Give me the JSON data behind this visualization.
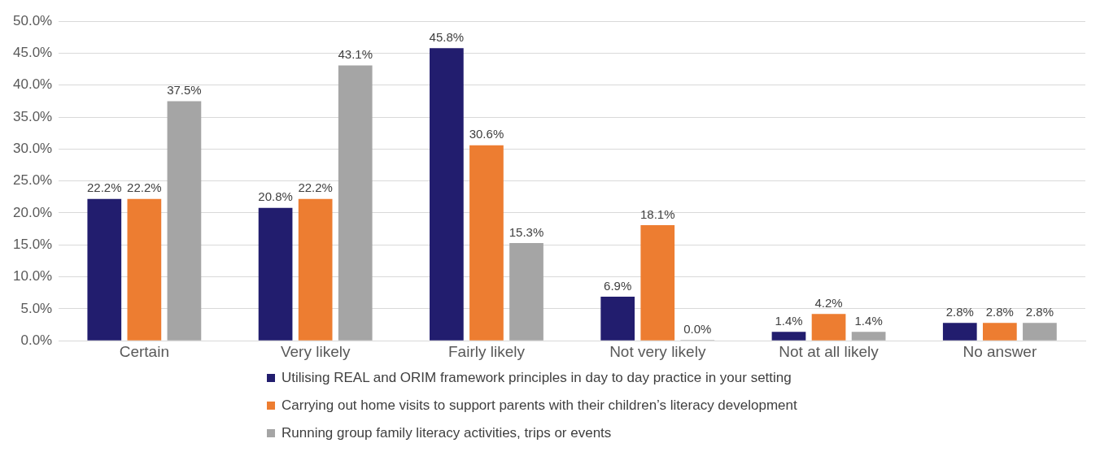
{
  "chart_data": {
    "type": "bar",
    "categories": [
      "Certain",
      "Very likely",
      "Fairly likely",
      "Not very likely",
      "Not at all likely",
      "No answer"
    ],
    "series": [
      {
        "name": "Utilising REAL and ORIM framework principles in day to day practice in your setting",
        "color": "#221d6e",
        "values": [
          22.2,
          20.8,
          45.8,
          6.9,
          1.4,
          2.8
        ],
        "value_labels": [
          "22.2%",
          "20.8%",
          "45.8%",
          "6.9%",
          "1.4%",
          "2.8%"
        ]
      },
      {
        "name": "Carrying out home visits to support parents with their children’s literacy development",
        "color": "#ed7d31",
        "values": [
          22.2,
          22.2,
          30.6,
          18.1,
          4.2,
          2.8
        ],
        "value_labels": [
          "22.2%",
          "22.2%",
          "30.6%",
          "18.1%",
          "4.2%",
          "2.8%"
        ]
      },
      {
        "name": "Running group family literacy activities, trips or events",
        "color": "#a5a5a5",
        "values": [
          37.5,
          43.1,
          15.3,
          0.0,
          1.4,
          2.8
        ],
        "value_labels": [
          "37.5%",
          "43.1%",
          "15.3%",
          "0.0%",
          "1.4%",
          "2.8%"
        ]
      }
    ],
    "ylim": [
      0,
      50
    ],
    "yticks": [
      {
        "value": 0,
        "label": "0.0%"
      },
      {
        "value": 5,
        "label": "5.0%"
      },
      {
        "value": 10,
        "label": "10.0%"
      },
      {
        "value": 15,
        "label": "15.0%"
      },
      {
        "value": 20,
        "label": "20.0%"
      },
      {
        "value": 25,
        "label": "25.0%"
      },
      {
        "value": 30,
        "label": "30.0%"
      },
      {
        "value": 35,
        "label": "35.0%"
      },
      {
        "value": 40,
        "label": "40.0%"
      },
      {
        "value": 45,
        "label": "45.0%"
      },
      {
        "value": 50,
        "label": "50.0%"
      }
    ],
    "grid": "y",
    "legend": "bottom"
  }
}
